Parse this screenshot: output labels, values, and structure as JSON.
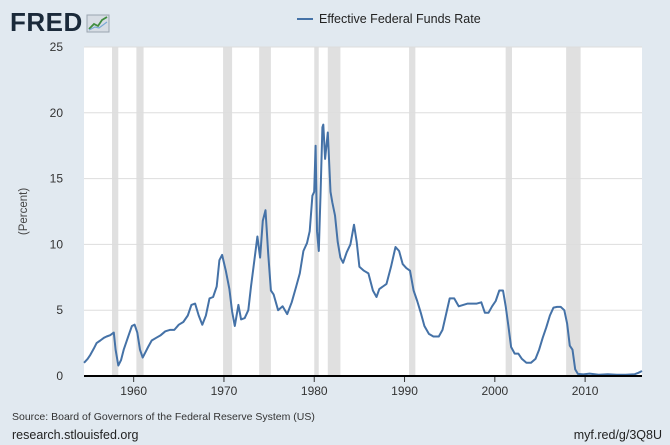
{
  "brand": {
    "name": "FRED",
    "icon": "fred-chart-logo-icon"
  },
  "footer": {
    "source": "Source: Board of Governors of the Federal Reserve System (US)",
    "site": "research.stlouisfed.org",
    "short_link": "myf.red/g/3Q8U"
  },
  "colors": {
    "background": "#e1e9f0",
    "plot": "#ffffff",
    "series": "#4572a7",
    "recession": "#e0e0e0",
    "grid": "#dddddd"
  },
  "chart_data": {
    "type": "line",
    "title": "",
    "xlabel": "",
    "ylabel": "(Percent)",
    "xlim": [
      1954.5,
      2016.3
    ],
    "ylim": [
      0,
      25
    ],
    "yticks": [
      0,
      5,
      10,
      15,
      20,
      25
    ],
    "xticks": [
      1960,
      1970,
      1980,
      1990,
      2000,
      2010
    ],
    "grid": true,
    "legend_position": "top",
    "recessions": [
      [
        1957.6,
        1958.3
      ],
      [
        1960.3,
        1961.1
      ],
      [
        1969.9,
        1970.9
      ],
      [
        1973.9,
        1975.2
      ],
      [
        1980.0,
        1980.5
      ],
      [
        1981.5,
        1982.9
      ],
      [
        1990.5,
        1991.2
      ],
      [
        2001.2,
        2001.9
      ],
      [
        2007.9,
        2009.5
      ]
    ],
    "series": [
      {
        "name": "Effective Federal Funds Rate",
        "x": [
          1954.5,
          1954.9,
          1955.2,
          1955.6,
          1955.9,
          1956.3,
          1956.7,
          1957.0,
          1957.4,
          1957.8,
          1958.0,
          1958.3,
          1958.6,
          1958.9,
          1959.2,
          1959.5,
          1959.8,
          1960.1,
          1960.4,
          1960.7,
          1961.0,
          1961.3,
          1961.6,
          1962.0,
          1962.5,
          1963.0,
          1963.5,
          1964.0,
          1964.5,
          1965.0,
          1965.5,
          1966.0,
          1966.4,
          1966.8,
          1967.2,
          1967.6,
          1968.0,
          1968.4,
          1968.8,
          1969.2,
          1969.5,
          1969.8,
          1970.2,
          1970.6,
          1970.9,
          1971.2,
          1971.6,
          1971.9,
          1972.3,
          1972.7,
          1973.0,
          1973.3,
          1973.7,
          1974.0,
          1974.3,
          1974.6,
          1974.9,
          1975.2,
          1975.5,
          1976.0,
          1976.5,
          1977.0,
          1977.5,
          1978.0,
          1978.4,
          1978.8,
          1979.2,
          1979.5,
          1979.8,
          1980.0,
          1980.15,
          1980.3,
          1980.5,
          1980.7,
          1980.9,
          1981.0,
          1981.2,
          1981.5,
          1981.8,
          1982.0,
          1982.3,
          1982.6,
          1982.9,
          1983.2,
          1983.6,
          1984.0,
          1984.4,
          1984.7,
          1985.0,
          1985.5,
          1986.0,
          1986.5,
          1986.9,
          1987.2,
          1987.6,
          1988.0,
          1988.5,
          1989.0,
          1989.4,
          1989.8,
          1990.2,
          1990.6,
          1991.0,
          1991.4,
          1991.8,
          1992.2,
          1992.7,
          1993.2,
          1993.8,
          1994.2,
          1994.6,
          1995.0,
          1995.5,
          1996.0,
          1996.5,
          1997.0,
          1997.5,
          1998.0,
          1998.5,
          1998.9,
          1999.3,
          1999.7,
          2000.1,
          2000.5,
          2000.9,
          2001.2,
          2001.5,
          2001.8,
          2002.2,
          2002.6,
          2003.0,
          2003.5,
          2004.0,
          2004.5,
          2004.9,
          2005.3,
          2005.7,
          2006.1,
          2006.5,
          2006.9,
          2007.3,
          2007.7,
          2008.0,
          2008.3,
          2008.6,
          2008.9,
          2009.2,
          2009.8,
          2010.5,
          2011.5,
          2012.5,
          2013.5,
          2014.5,
          2015.5,
          2015.9,
          2016.3
        ],
        "values": [
          1.0,
          1.3,
          1.6,
          2.1,
          2.5,
          2.7,
          2.9,
          3.0,
          3.1,
          3.3,
          2.0,
          0.8,
          1.2,
          2.0,
          2.6,
          3.2,
          3.8,
          3.9,
          3.3,
          2.0,
          1.4,
          1.8,
          2.2,
          2.7,
          2.9,
          3.1,
          3.4,
          3.5,
          3.5,
          3.9,
          4.1,
          4.6,
          5.4,
          5.5,
          4.6,
          3.9,
          4.6,
          5.9,
          6.0,
          6.8,
          8.8,
          9.2,
          8.0,
          6.6,
          4.9,
          3.8,
          5.4,
          4.3,
          4.4,
          5.0,
          6.8,
          8.4,
          10.6,
          9.0,
          11.8,
          12.6,
          9.3,
          6.5,
          6.2,
          5.0,
          5.3,
          4.7,
          5.6,
          6.8,
          7.8,
          9.5,
          10.1,
          11.0,
          13.7,
          14.0,
          17.5,
          11.0,
          9.5,
          14.0,
          18.9,
          19.1,
          16.5,
          18.5,
          14.0,
          13.2,
          12.2,
          10.2,
          9.0,
          8.6,
          9.4,
          10.0,
          11.5,
          10.2,
          8.3,
          8.0,
          7.8,
          6.5,
          6.0,
          6.6,
          6.8,
          7.0,
          8.3,
          9.8,
          9.5,
          8.5,
          8.2,
          8.0,
          6.5,
          5.7,
          4.8,
          3.8,
          3.2,
          3.0,
          3.0,
          3.5,
          4.7,
          5.9,
          5.9,
          5.3,
          5.4,
          5.5,
          5.5,
          5.5,
          5.6,
          4.8,
          4.8,
          5.3,
          5.7,
          6.5,
          6.5,
          5.3,
          3.8,
          2.2,
          1.7,
          1.7,
          1.3,
          1.0,
          1.0,
          1.3,
          2.0,
          2.9,
          3.7,
          4.6,
          5.2,
          5.25,
          5.25,
          5.0,
          4.0,
          2.3,
          2.0,
          0.5,
          0.16,
          0.12,
          0.18,
          0.1,
          0.14,
          0.09,
          0.09,
          0.14,
          0.24,
          0.38
        ]
      }
    ]
  }
}
